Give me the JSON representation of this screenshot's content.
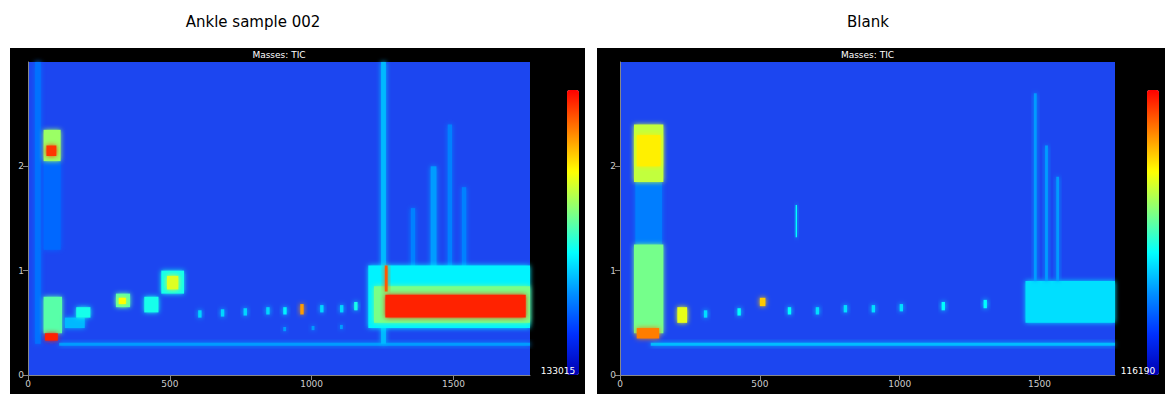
{
  "chart_data": [
    {
      "type": "heatmap",
      "title": "Ankle sample 002",
      "subtitle": "Masses: TIC",
      "xlim": [
        0,
        1770
      ],
      "xticks": [
        0,
        500,
        1000,
        1500
      ],
      "ylim": [
        0,
        3
      ],
      "yticks": [
        0,
        1,
        2
      ],
      "colorbar": {
        "range": [
          0,
          133015
        ],
        "ticks": [
          133015
        ]
      },
      "cells": [
        [
          25,
          45,
          0.3,
          3.0,
          32000
        ],
        [
          110,
          1770,
          0.28,
          0.31,
          40000
        ],
        [
          1245,
          1262,
          0.3,
          3.0,
          45000
        ],
        [
          55,
          115,
          1.2,
          2.05,
          30000
        ],
        [
          55,
          115,
          2.05,
          2.35,
          80000
        ],
        [
          65,
          100,
          2.1,
          2.2,
          125000
        ],
        [
          55,
          120,
          0.4,
          0.75,
          70000
        ],
        [
          60,
          105,
          0.33,
          0.4,
          128000
        ],
        [
          130,
          200,
          0.45,
          0.55,
          45000
        ],
        [
          170,
          220,
          0.55,
          0.65,
          60000
        ],
        [
          310,
          360,
          0.65,
          0.78,
          70000
        ],
        [
          320,
          345,
          0.68,
          0.74,
          95000
        ],
        [
          410,
          460,
          0.6,
          0.75,
          60000
        ],
        [
          470,
          550,
          0.78,
          1.0,
          60000
        ],
        [
          490,
          530,
          0.82,
          0.95,
          90000
        ],
        [
          1350,
          1365,
          1.0,
          1.6,
          35000
        ],
        [
          1420,
          1440,
          1.0,
          2.0,
          40000
        ],
        [
          1480,
          1495,
          1.0,
          2.4,
          35000
        ],
        [
          1530,
          1545,
          1.0,
          1.8,
          35000
        ],
        [
          1200,
          1770,
          0.45,
          1.05,
          55000
        ],
        [
          1220,
          1770,
          0.5,
          0.85,
          75000
        ],
        [
          1260,
          1755,
          0.55,
          0.77,
          128000
        ],
        [
          1258,
          1268,
          0.8,
          1.05,
          120000
        ],
        [
          600,
          612,
          0.55,
          0.62,
          50000
        ],
        [
          680,
          692,
          0.56,
          0.63,
          50000
        ],
        [
          760,
          772,
          0.57,
          0.64,
          50000
        ],
        [
          840,
          852,
          0.58,
          0.65,
          50000
        ],
        [
          900,
          912,
          0.58,
          0.65,
          55000
        ],
        [
          960,
          972,
          0.58,
          0.68,
          110000
        ],
        [
          1030,
          1042,
          0.6,
          0.67,
          50000
        ],
        [
          1100,
          1112,
          0.6,
          0.67,
          50000
        ],
        [
          1150,
          1162,
          0.62,
          0.7,
          60000
        ],
        [
          900,
          910,
          0.42,
          0.46,
          40000
        ],
        [
          1000,
          1010,
          0.43,
          0.47,
          40000
        ],
        [
          1100,
          1110,
          0.44,
          0.48,
          40000
        ]
      ]
    },
    {
      "type": "heatmap",
      "title": "Blank",
      "subtitle": "Masses: TIC",
      "xlim": [
        0,
        1770
      ],
      "xticks": [
        0,
        500,
        1000,
        1500
      ],
      "ylim": [
        0,
        3
      ],
      "yticks": [
        0,
        1,
        2
      ],
      "colorbar": {
        "range": [
          0,
          116190
        ],
        "ticks": [
          116190
        ]
      },
      "cells": [
        [
          110,
          1770,
          0.28,
          0.31,
          40000
        ],
        [
          55,
          150,
          1.25,
          1.85,
          30000
        ],
        [
          50,
          155,
          1.85,
          2.4,
          75000
        ],
        [
          60,
          145,
          2.0,
          2.3,
          85000
        ],
        [
          50,
          155,
          0.4,
          1.25,
          65000
        ],
        [
          60,
          140,
          0.35,
          0.45,
          100000
        ],
        [
          205,
          240,
          0.5,
          0.65,
          80000
        ],
        [
          628,
          633,
          1.32,
          1.63,
          50000
        ],
        [
          1450,
          1770,
          0.5,
          0.9,
          45000
        ],
        [
          1480,
          1490,
          0.9,
          2.7,
          35000
        ],
        [
          1520,
          1530,
          0.9,
          2.2,
          35000
        ],
        [
          1560,
          1570,
          0.9,
          1.9,
          35000
        ],
        [
          300,
          312,
          0.55,
          0.62,
          45000
        ],
        [
          420,
          432,
          0.57,
          0.64,
          50000
        ],
        [
          500,
          520,
          0.66,
          0.74,
          90000
        ],
        [
          600,
          612,
          0.58,
          0.65,
          50000
        ],
        [
          700,
          712,
          0.58,
          0.65,
          45000
        ],
        [
          800,
          812,
          0.6,
          0.67,
          45000
        ],
        [
          900,
          912,
          0.6,
          0.67,
          45000
        ],
        [
          1000,
          1012,
          0.61,
          0.68,
          45000
        ],
        [
          1150,
          1162,
          0.62,
          0.7,
          50000
        ],
        [
          1300,
          1312,
          0.64,
          0.72,
          50000
        ]
      ]
    }
  ]
}
